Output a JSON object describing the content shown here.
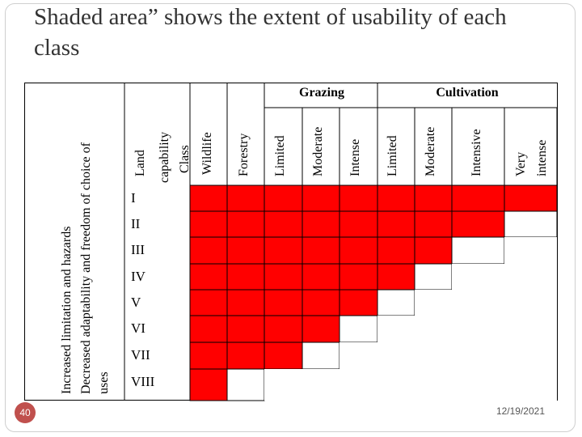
{
  "slide": {
    "title": "Shaded area” shows the extent of usability of each class",
    "number": "40",
    "date": "12/19/2021"
  },
  "diagram": {
    "left_axis": {
      "line1": "Increased limitation and hazards",
      "line2": "Decreased adaptability and freedom of choice of",
      "line3": "uses"
    },
    "header": {
      "class_line1": "Land",
      "class_line2": "capability",
      "class_line3": "Class",
      "groups": [
        "Grazing",
        "Cultivation"
      ],
      "columns": [
        "Wildlife",
        "Forestry",
        "Limited",
        "Moderate",
        "Intense",
        "Limited",
        "Moderate",
        "Intensive",
        "Very intense"
      ]
    },
    "classes": [
      "I",
      "II",
      "III",
      "IV",
      "V",
      "VI",
      "VII",
      "VIII"
    ],
    "shaded_columns_per_class": [
      9,
      8,
      7,
      6,
      5,
      4,
      3,
      1
    ],
    "shade_color": "#ff0000"
  }
}
